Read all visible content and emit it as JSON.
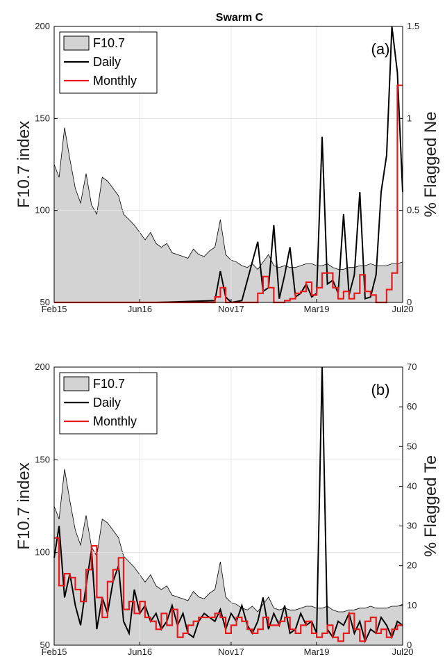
{
  "figure_title": "Swarm C",
  "chart_data": [
    {
      "type": "line",
      "panel_label": "(a)",
      "ylabel_left": "F10.7 index",
      "ylabel_right": "% Flagged Ne",
      "xlim": [
        "2015-02-01",
        "2020-07-01"
      ],
      "xticks": [
        "2015-02-01",
        "2016-06-01",
        "2017-11-01",
        "2019-03-01",
        "2020-07-01"
      ],
      "xtick_labels": [
        "Feb15",
        "Jun16",
        "Nov17",
        "Mar19",
        "Jul20"
      ],
      "ylim_left": [
        50,
        200
      ],
      "yticks_left": [
        50,
        100,
        150,
        200
      ],
      "ylim_right": [
        0,
        1.5
      ],
      "yticks_right": [
        0,
        0.5,
        1,
        1.5
      ],
      "ytick_labels_right": [
        "0",
        "0.5",
        "1",
        "1.5"
      ],
      "grid": true,
      "legend": [
        "F10.7",
        "Daily",
        "Monthly"
      ],
      "legend_position": "top-left",
      "series": [
        {
          "name": "F10.7",
          "axis": "left",
          "style": "area",
          "color": "#d3d3d3",
          "x": [
            "2015-02-01",
            "2015-03-01",
            "2015-04-01",
            "2015-05-01",
            "2015-06-01",
            "2015-07-01",
            "2015-08-01",
            "2015-09-01",
            "2015-10-01",
            "2015-11-01",
            "2015-12-01",
            "2016-01-01",
            "2016-02-01",
            "2016-03-01",
            "2016-04-01",
            "2016-05-01",
            "2016-06-01",
            "2016-07-01",
            "2016-08-01",
            "2016-09-01",
            "2016-10-01",
            "2016-11-01",
            "2016-12-01",
            "2017-01-01",
            "2017-02-01",
            "2017-03-01",
            "2017-04-01",
            "2017-05-01",
            "2017-06-01",
            "2017-07-01",
            "2017-08-01",
            "2017-09-01",
            "2017-10-01",
            "2017-11-01",
            "2017-12-01",
            "2018-01-01",
            "2018-02-01",
            "2018-03-01",
            "2018-04-01",
            "2018-05-01",
            "2018-06-01",
            "2018-07-01",
            "2018-08-01",
            "2018-09-01",
            "2018-10-01",
            "2018-11-01",
            "2018-12-01",
            "2019-01-01",
            "2019-02-01",
            "2019-03-01",
            "2019-04-01",
            "2019-05-01",
            "2019-06-01",
            "2019-07-01",
            "2019-08-01",
            "2019-09-01",
            "2019-10-01",
            "2019-11-01",
            "2019-12-01",
            "2020-01-01",
            "2020-02-01",
            "2020-03-01",
            "2020-04-01",
            "2020-05-01",
            "2020-06-01",
            "2020-07-01"
          ],
          "values": [
            125,
            118,
            145,
            128,
            112,
            104,
            120,
            103,
            98,
            118,
            116,
            112,
            108,
            98,
            95,
            92,
            88,
            84,
            88,
            82,
            80,
            82,
            77,
            76,
            75,
            74,
            79,
            76,
            75,
            78,
            80,
            95,
            76,
            73,
            72,
            70,
            69,
            71,
            68,
            72,
            76,
            70,
            69,
            70,
            69,
            69,
            70,
            71,
            71,
            70,
            70,
            71,
            69,
            68,
            68,
            69,
            69,
            70,
            70,
            71,
            70,
            70,
            70,
            71,
            71,
            72
          ]
        },
        {
          "name": "Daily",
          "axis": "right",
          "style": "line",
          "color": "#000000",
          "x": [
            "2015-02-01",
            "2016-02-01",
            "2016-09-01",
            "2017-08-01",
            "2017-09-01",
            "2017-10-01",
            "2017-11-01",
            "2018-01-01",
            "2018-04-01",
            "2018-05-01",
            "2018-06-01",
            "2018-07-01",
            "2018-08-01",
            "2018-09-01",
            "2018-10-01",
            "2018-11-01",
            "2018-12-01",
            "2019-01-01",
            "2019-02-01",
            "2019-03-01",
            "2019-04-01",
            "2019-05-01",
            "2019-06-01",
            "2019-07-01",
            "2019-08-01",
            "2019-09-01",
            "2019-10-01",
            "2019-11-01",
            "2019-12-01",
            "2020-01-01",
            "2020-02-01",
            "2020-03-01",
            "2020-04-01",
            "2020-05-01",
            "2020-06-01",
            "2020-07-01"
          ],
          "values": [
            0,
            0,
            0,
            0.01,
            0.17,
            0.03,
            0,
            0.01,
            0.33,
            0.06,
            0.08,
            0.42,
            0.02,
            0.15,
            0.3,
            0.03,
            0.05,
            0.1,
            0.03,
            0.05,
            0.9,
            0.1,
            0.12,
            0.05,
            0.48,
            0.04,
            0.15,
            0.6,
            0.02,
            0.03,
            0.15,
            0.6,
            0.8,
            1.5,
            1.25,
            0.6
          ]
        },
        {
          "name": "Monthly",
          "axis": "right",
          "style": "step",
          "color": "#e8191b",
          "x": [
            "2015-02-01",
            "2015-03-01",
            "2015-04-01",
            "2015-05-01",
            "2015-06-01",
            "2015-07-01",
            "2015-08-01",
            "2015-09-01",
            "2015-10-01",
            "2015-11-01",
            "2015-12-01",
            "2016-01-01",
            "2016-02-01",
            "2016-03-01",
            "2016-04-01",
            "2016-05-01",
            "2016-06-01",
            "2016-07-01",
            "2016-08-01",
            "2016-09-01",
            "2016-10-01",
            "2016-11-01",
            "2016-12-01",
            "2017-01-01",
            "2017-02-01",
            "2017-03-01",
            "2017-04-01",
            "2017-05-01",
            "2017-06-01",
            "2017-07-01",
            "2017-08-01",
            "2017-09-01",
            "2017-10-01",
            "2017-11-01",
            "2017-12-01",
            "2018-01-01",
            "2018-02-01",
            "2018-03-01",
            "2018-04-01",
            "2018-05-01",
            "2018-06-01",
            "2018-07-01",
            "2018-08-01",
            "2018-09-01",
            "2018-10-01",
            "2018-11-01",
            "2018-12-01",
            "2019-01-01",
            "2019-02-01",
            "2019-03-01",
            "2019-04-01",
            "2019-05-01",
            "2019-06-01",
            "2019-07-01",
            "2019-08-01",
            "2019-09-01",
            "2019-10-01",
            "2019-11-01",
            "2019-12-01",
            "2020-01-01",
            "2020-02-01",
            "2020-03-01",
            "2020-04-01",
            "2020-05-01",
            "2020-06-01",
            "2020-07-01"
          ],
          "values": [
            0,
            0,
            0,
            0,
            0,
            0,
            0,
            0,
            0,
            0,
            0,
            0,
            0,
            0,
            0,
            0,
            0,
            0,
            0,
            0,
            0,
            0,
            0,
            0,
            0,
            0,
            0,
            0,
            0,
            0,
            0.03,
            0.08,
            0,
            0,
            0,
            0,
            0,
            0,
            0.05,
            0.14,
            0.08,
            0,
            0,
            0.01,
            0.02,
            0.05,
            0.06,
            0.11,
            0.04,
            0.08,
            0.16,
            0.16,
            0.08,
            0.02,
            0.06,
            0.02,
            0.05,
            0.15,
            0.06,
            0.04,
            0,
            0,
            0.07,
            0.16,
            1.18,
            1.18
          ]
        }
      ]
    },
    {
      "type": "line",
      "panel_label": "(b)",
      "ylabel_left": "F10.7 index",
      "ylabel_right": "% Flagged Te",
      "xlim": [
        "2015-02-01",
        "2020-07-01"
      ],
      "xticks": [
        "2015-02-01",
        "2016-06-01",
        "2017-11-01",
        "2019-03-01",
        "2020-07-01"
      ],
      "xtick_labels": [
        "Feb15",
        "Jun16",
        "Nov17",
        "Mar19",
        "Jul20"
      ],
      "ylim_left": [
        50,
        200
      ],
      "yticks_left": [
        50,
        100,
        150,
        200
      ],
      "ylim_right": [
        0,
        70
      ],
      "yticks_right": [
        0,
        10,
        20,
        30,
        40,
        50,
        60,
        70
      ],
      "ytick_labels_right": [
        "0",
        "10",
        "20",
        "30",
        "40",
        "50",
        "60",
        "70"
      ],
      "grid": true,
      "legend": [
        "F10.7",
        "Daily",
        "Monthly"
      ],
      "legend_position": "top-left",
      "series": [
        {
          "name": "F10.7",
          "axis": "left",
          "style": "area",
          "color": "#d3d3d3",
          "x": [
            "2015-02-01",
            "2015-03-01",
            "2015-04-01",
            "2015-05-01",
            "2015-06-01",
            "2015-07-01",
            "2015-08-01",
            "2015-09-01",
            "2015-10-01",
            "2015-11-01",
            "2015-12-01",
            "2016-01-01",
            "2016-02-01",
            "2016-03-01",
            "2016-04-01",
            "2016-05-01",
            "2016-06-01",
            "2016-07-01",
            "2016-08-01",
            "2016-09-01",
            "2016-10-01",
            "2016-11-01",
            "2016-12-01",
            "2017-01-01",
            "2017-02-01",
            "2017-03-01",
            "2017-04-01",
            "2017-05-01",
            "2017-06-01",
            "2017-07-01",
            "2017-08-01",
            "2017-09-01",
            "2017-10-01",
            "2017-11-01",
            "2017-12-01",
            "2018-01-01",
            "2018-02-01",
            "2018-03-01",
            "2018-04-01",
            "2018-05-01",
            "2018-06-01",
            "2018-07-01",
            "2018-08-01",
            "2018-09-01",
            "2018-10-01",
            "2018-11-01",
            "2018-12-01",
            "2019-01-01",
            "2019-02-01",
            "2019-03-01",
            "2019-04-01",
            "2019-05-01",
            "2019-06-01",
            "2019-07-01",
            "2019-08-01",
            "2019-09-01",
            "2019-10-01",
            "2019-11-01",
            "2019-12-01",
            "2020-01-01",
            "2020-02-01",
            "2020-03-01",
            "2020-04-01",
            "2020-05-01",
            "2020-06-01",
            "2020-07-01"
          ],
          "values": [
            125,
            118,
            145,
            128,
            112,
            104,
            120,
            103,
            98,
            118,
            116,
            112,
            108,
            98,
            95,
            92,
            88,
            84,
            88,
            82,
            80,
            82,
            77,
            76,
            75,
            74,
            79,
            76,
            75,
            78,
            80,
            95,
            76,
            73,
            72,
            70,
            69,
            71,
            68,
            72,
            76,
            70,
            69,
            70,
            69,
            69,
            70,
            71,
            71,
            70,
            70,
            71,
            69,
            68,
            68,
            69,
            69,
            70,
            70,
            71,
            70,
            70,
            70,
            71,
            71,
            72
          ]
        },
        {
          "name": "Daily",
          "axis": "right",
          "style": "line",
          "color": "#000000",
          "x": [
            "2015-02-01",
            "2015-03-01",
            "2015-04-01",
            "2015-05-01",
            "2015-06-01",
            "2015-07-01",
            "2015-08-01",
            "2015-09-01",
            "2015-10-01",
            "2015-11-01",
            "2015-12-01",
            "2016-01-01",
            "2016-02-01",
            "2016-03-01",
            "2016-04-01",
            "2016-05-01",
            "2016-06-01",
            "2016-07-01",
            "2016-08-01",
            "2016-09-01",
            "2016-10-01",
            "2016-11-01",
            "2016-12-01",
            "2017-01-01",
            "2017-02-01",
            "2017-03-01",
            "2017-04-01",
            "2017-05-01",
            "2017-06-01",
            "2017-07-01",
            "2017-08-01",
            "2017-09-01",
            "2017-10-01",
            "2017-11-01",
            "2017-12-01",
            "2018-01-01",
            "2018-02-01",
            "2018-03-01",
            "2018-04-01",
            "2018-05-01",
            "2018-06-01",
            "2018-07-01",
            "2018-08-01",
            "2018-09-01",
            "2018-10-01",
            "2018-11-01",
            "2018-12-01",
            "2019-01-01",
            "2019-02-01",
            "2019-03-01",
            "2019-04-01",
            "2019-05-01",
            "2019-06-01",
            "2019-07-01",
            "2019-08-01",
            "2019-09-01",
            "2019-10-01",
            "2019-11-01",
            "2019-12-01",
            "2020-01-01",
            "2020-02-01",
            "2020-03-01",
            "2020-04-01",
            "2020-05-01",
            "2020-06-01",
            "2020-07-01"
          ],
          "values": [
            22,
            30,
            12,
            18,
            10,
            5,
            15,
            24,
            4,
            12,
            8,
            16,
            20,
            6,
            3,
            14,
            8,
            10,
            6,
            8,
            4,
            6,
            10,
            5,
            8,
            3,
            2,
            6,
            8,
            7,
            6,
            9,
            4,
            8,
            6,
            10,
            5,
            3,
            6,
            12,
            4,
            8,
            5,
            10,
            3,
            4,
            8,
            5,
            6,
            3,
            70,
            4,
            2,
            6,
            5,
            8,
            3,
            6,
            1,
            4,
            3,
            7,
            5,
            2,
            6,
            5
          ]
        },
        {
          "name": "Monthly",
          "axis": "right",
          "style": "step",
          "color": "#e8191b",
          "x": [
            "2015-02-01",
            "2015-03-01",
            "2015-04-01",
            "2015-05-01",
            "2015-06-01",
            "2015-07-01",
            "2015-08-01",
            "2015-09-01",
            "2015-10-01",
            "2015-11-01",
            "2015-12-01",
            "2016-01-01",
            "2016-02-01",
            "2016-03-01",
            "2016-04-01",
            "2016-05-01",
            "2016-06-01",
            "2016-07-01",
            "2016-08-01",
            "2016-09-01",
            "2016-10-01",
            "2016-11-01",
            "2016-12-01",
            "2017-01-01",
            "2017-02-01",
            "2017-03-01",
            "2017-04-01",
            "2017-05-01",
            "2017-06-01",
            "2017-07-01",
            "2017-08-01",
            "2017-09-01",
            "2017-10-01",
            "2017-11-01",
            "2017-12-01",
            "2018-01-01",
            "2018-02-01",
            "2018-03-01",
            "2018-04-01",
            "2018-05-01",
            "2018-06-01",
            "2018-07-01",
            "2018-08-01",
            "2018-09-01",
            "2018-10-01",
            "2018-11-01",
            "2018-12-01",
            "2019-01-01",
            "2019-02-01",
            "2019-03-01",
            "2019-04-01",
            "2019-05-01",
            "2019-06-01",
            "2019-07-01",
            "2019-08-01",
            "2019-09-01",
            "2019-10-01",
            "2019-11-01",
            "2019-12-01",
            "2020-01-01",
            "2020-02-01",
            "2020-03-01",
            "2020-04-01",
            "2020-05-01",
            "2020-06-01",
            "2020-07-01"
          ],
          "values": [
            27,
            15,
            18,
            17,
            14,
            11,
            19,
            25,
            12,
            7,
            16,
            19,
            22,
            9,
            11,
            8,
            11,
            7,
            6,
            4,
            8,
            5,
            9,
            2,
            3,
            5,
            6,
            7,
            7,
            7,
            8,
            7,
            3,
            5,
            7,
            6,
            4,
            3,
            4,
            7,
            5,
            5,
            6,
            7,
            4,
            3,
            5,
            6,
            3,
            2,
            3,
            5,
            2,
            1,
            3,
            8,
            4,
            1,
            6,
            7,
            3,
            4,
            2,
            4,
            5,
            5
          ]
        }
      ]
    }
  ]
}
